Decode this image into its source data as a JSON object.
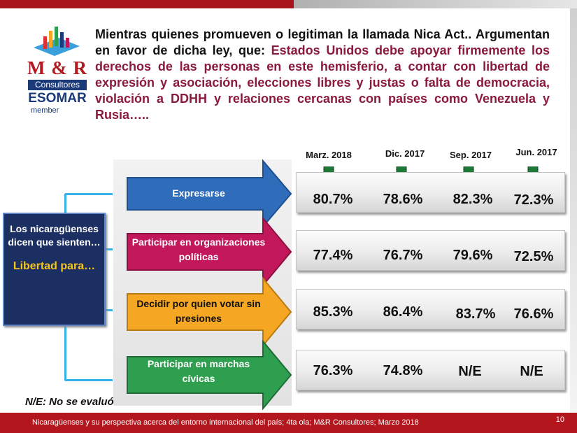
{
  "header": {
    "intro": "Mientras quienes promueven o legitiman la llamada Nica Act.. Argumentan en favor de dicha ley, que:",
    "highlight": "Estados Unidos debe apoyar firmemente los derechos de las personas en este hemisferio, a contar con libertad de expresión y asociación, elecciones libres y justas o falta de democracia, violación a DDHH y relaciones cercanas con países como Venezuela y Rusia….."
  },
  "logo": {
    "name": "M & R",
    "subtitle": "Consultores",
    "association": "ESOMAR",
    "member": "member"
  },
  "left_box": {
    "line1": "Los nicaragüenses dicen que sienten…",
    "line2": "Libertad para…"
  },
  "note": "N/E: No se evaluó",
  "footer": {
    "text": "Nicaragüenses y su perspectiva acerca del entorno internacional del país; 4ta ola; M&R Consultores; Marzo 2018",
    "page": "10"
  },
  "colors": {
    "blue": "#2f6dbb",
    "magenta": "#c2185b",
    "orange": "#f5a623",
    "green": "#2e9e4f",
    "brand_red": "#b3161d"
  },
  "chart_data": {
    "type": "table",
    "columns": [
      "Marz. 2018",
      "Dic. 2017",
      "Sep. 2017",
      "Jun. 2017"
    ],
    "rows": [
      {
        "label": "Expresarse",
        "values": [
          "80.7%",
          "78.6%",
          "82.3%",
          "72.3%"
        ]
      },
      {
        "label": "Participar en organizaciones políticas",
        "values": [
          "77.4%",
          "76.7%",
          "79.6%",
          "72.5%"
        ]
      },
      {
        "label": "Decidir por quien votar sin presiones",
        "values": [
          "85.3%",
          "86.4%",
          "83.7%",
          "76.6%"
        ]
      },
      {
        "label": "Participar en marchas cívicas",
        "values": [
          "76.3%",
          "74.8%",
          "N/E",
          "N/E"
        ]
      }
    ]
  }
}
